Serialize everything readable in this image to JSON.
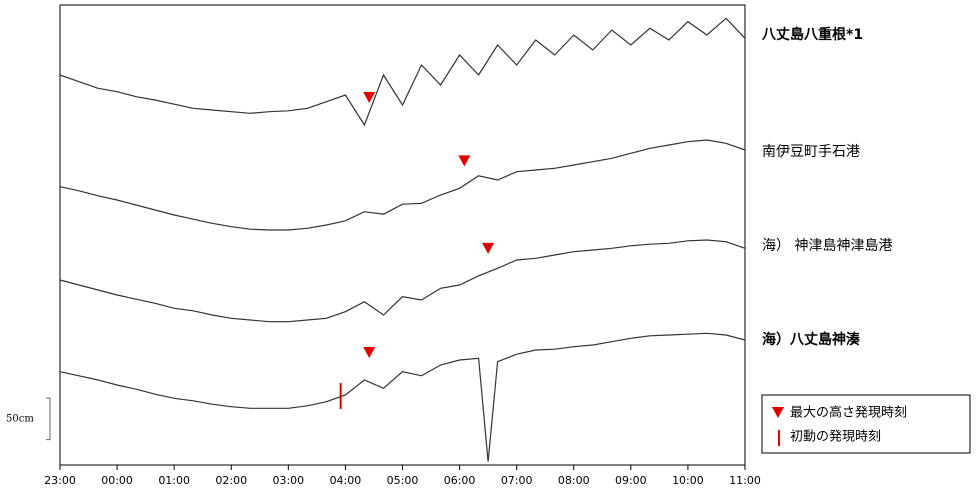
{
  "chart_data": {
    "type": "line",
    "xlim": [
      "23:00",
      "11:00"
    ],
    "xticks": [
      "23:00",
      "00:00",
      "01:00",
      "02:00",
      "03:00",
      "04:00",
      "05:00",
      "06:00",
      "07:00",
      "08:00",
      "09:00",
      "10:00",
      "11:00"
    ],
    "ylim": [
      0,
      552
    ],
    "scale_bar": {
      "value": 50,
      "label": "50cm"
    },
    "series": [
      {
        "name": "八丈島八重根*1",
        "color": "#333333",
        "max_time": "04:25",
        "x": [
          "23:00",
          "23:20",
          "23:40",
          "00:00",
          "00:20",
          "00:40",
          "01:00",
          "01:20",
          "01:40",
          "02:00",
          "02:20",
          "02:40",
          "03:00",
          "03:20",
          "03:40",
          "04:00",
          "04:20",
          "04:40",
          "05:00",
          "05:20",
          "05:40",
          "06:00",
          "06:20",
          "06:40",
          "07:00",
          "07:20",
          "07:40",
          "08:00",
          "08:20",
          "08:40",
          "09:00",
          "09:20",
          "09:40",
          "10:00",
          "10:20",
          "10:40",
          "11:00"
        ],
        "values": [
          468,
          460,
          452,
          448,
          442,
          438,
          433,
          428,
          426,
          424,
          422,
          424,
          425,
          428,
          436,
          444,
          408,
          468,
          432,
          480,
          456,
          492,
          468,
          504,
          480,
          510,
          492,
          516,
          498,
          522,
          504,
          524,
          510,
          532,
          516,
          536,
          512
        ]
      },
      {
        "name": "南伊豆町手石港",
        "color": "#333333",
        "max_time": "06:05",
        "x": [
          "23:00",
          "23:20",
          "23:40",
          "00:00",
          "00:20",
          "00:40",
          "01:00",
          "01:20",
          "01:40",
          "02:00",
          "02:20",
          "02:40",
          "03:00",
          "03:20",
          "03:40",
          "04:00",
          "04:20",
          "04:40",
          "05:00",
          "05:20",
          "05:40",
          "06:00",
          "06:20",
          "06:40",
          "07:00",
          "07:20",
          "07:40",
          "08:00",
          "08:20",
          "08:40",
          "09:00",
          "09:20",
          "09:40",
          "10:00",
          "10:20",
          "10:40",
          "11:00"
        ],
        "values": [
          334,
          329,
          323,
          318,
          312,
          306,
          300,
          295,
          290,
          286,
          283,
          282,
          282,
          284,
          288,
          293,
          304,
          301,
          313,
          314,
          324,
          332,
          347,
          342,
          352,
          354,
          356,
          360,
          364,
          368,
          374,
          380,
          384,
          388,
          390,
          386,
          378
        ]
      },
      {
        "name": "海） 神津島神津島港",
        "color": "#333333",
        "max_time": "06:30",
        "x": [
          "23:00",
          "23:20",
          "23:40",
          "00:00",
          "00:20",
          "00:40",
          "01:00",
          "01:20",
          "01:40",
          "02:00",
          "02:20",
          "02:40",
          "03:00",
          "03:20",
          "03:40",
          "04:00",
          "04:20",
          "04:40",
          "05:00",
          "05:20",
          "05:40",
          "06:00",
          "06:20",
          "06:40",
          "07:00",
          "07:20",
          "07:40",
          "08:00",
          "08:20",
          "08:40",
          "09:00",
          "09:20",
          "09:40",
          "10:00",
          "10:20",
          "10:40",
          "11:00"
        ],
        "values": [
          222,
          216,
          210,
          204,
          199,
          194,
          188,
          185,
          180,
          176,
          174,
          172,
          172,
          174,
          176,
          184,
          196,
          180,
          202,
          198,
          212,
          216,
          227,
          236,
          246,
          248,
          252,
          256,
          258,
          260,
          263,
          265,
          266,
          269,
          270,
          268,
          260
        ]
      },
      {
        "name": "海）八丈島神湊",
        "color": "#333333",
        "max_time": "04:25",
        "first_arrival": "03:55",
        "x": [
          "23:00",
          "23:20",
          "23:40",
          "00:00",
          "00:20",
          "00:40",
          "01:00",
          "01:20",
          "01:40",
          "02:00",
          "02:20",
          "02:40",
          "03:00",
          "03:20",
          "03:40",
          "04:00",
          "04:20",
          "04:40",
          "05:00",
          "05:20",
          "05:40",
          "06:00",
          "06:20",
          "06:30",
          "06:40",
          "07:00",
          "07:20",
          "07:40",
          "08:00",
          "08:20",
          "08:40",
          "09:00",
          "09:20",
          "09:40",
          "10:00",
          "10:20",
          "10:40",
          "11:00"
        ],
        "values": [
          112,
          107,
          102,
          96,
          91,
          85,
          80,
          77,
          73,
          70,
          68,
          68,
          68,
          71,
          76,
          84,
          102,
          92,
          112,
          107,
          120,
          126,
          128,
          4,
          124,
          133,
          138,
          139,
          142,
          144,
          148,
          152,
          155,
          156,
          157,
          158,
          156,
          150
        ]
      }
    ],
    "legend": {
      "max_label": "最大の高さ発現時刻",
      "first_label": "初動の発現時刻",
      "marker_color": "#e00000"
    }
  }
}
